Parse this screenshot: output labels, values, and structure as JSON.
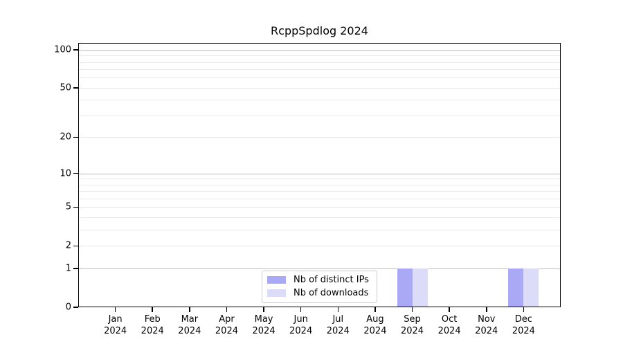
{
  "figure": {
    "title": "RcppSpdlog 2024"
  },
  "chart_data": {
    "type": "bar",
    "title": "RcppSpdlog 2024",
    "categories": [
      {
        "month": "Jan",
        "year": "2024"
      },
      {
        "month": "Feb",
        "year": "2024"
      },
      {
        "month": "Mar",
        "year": "2024"
      },
      {
        "month": "Apr",
        "year": "2024"
      },
      {
        "month": "May",
        "year": "2024"
      },
      {
        "month": "Jun",
        "year": "2024"
      },
      {
        "month": "Jul",
        "year": "2024"
      },
      {
        "month": "Aug",
        "year": "2024"
      },
      {
        "month": "Sep",
        "year": "2024"
      },
      {
        "month": "Oct",
        "year": "2024"
      },
      {
        "month": "Nov",
        "year": "2024"
      },
      {
        "month": "Dec",
        "year": "2024"
      }
    ],
    "series": [
      {
        "name": "Nb of distinct IPs",
        "color": "#a9a9f5",
        "values": [
          0,
          0,
          0,
          0,
          0,
          0,
          0,
          0,
          1,
          0,
          0,
          1
        ]
      },
      {
        "name": "Nb of downloads",
        "color": "#dcdcf8",
        "values": [
          0,
          0,
          0,
          0,
          0,
          0,
          0,
          0,
          1,
          0,
          0,
          1
        ]
      }
    ],
    "y_scale": "log1p",
    "ylim": [
      0,
      113
    ],
    "y_ticks": [
      0,
      1,
      2,
      5,
      10,
      20,
      50,
      100
    ],
    "y_major_gridlines": [
      1,
      10,
      100
    ],
    "y_minor_gridlines": [
      2,
      3,
      4,
      5,
      6,
      7,
      8,
      9,
      20,
      30,
      40,
      50,
      60,
      70,
      80,
      90
    ],
    "grid_major_color": "#bcbcbc",
    "grid_minor_color": "#e9e9e9",
    "legend_position": "lower center"
  }
}
